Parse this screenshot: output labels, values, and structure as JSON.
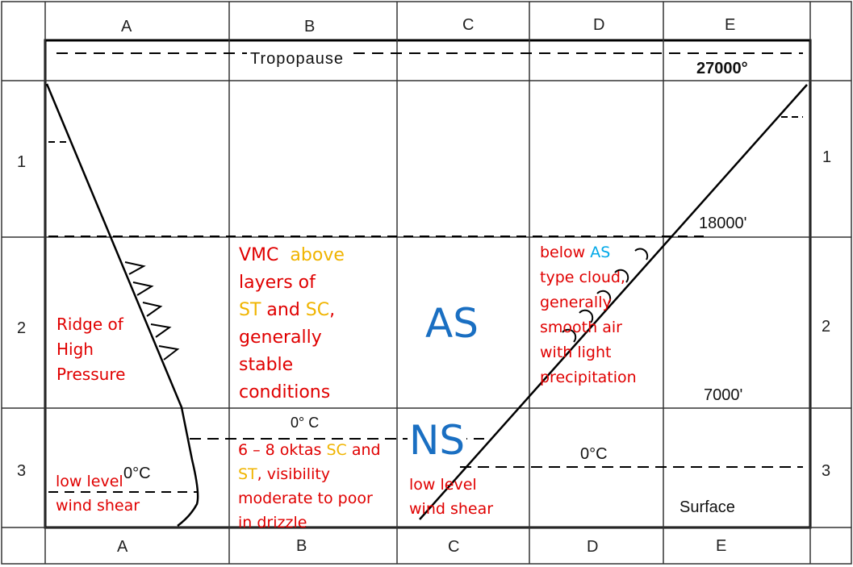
{
  "columns": [
    "A",
    "B",
    "C",
    "D",
    "E"
  ],
  "rows": [
    "1",
    "2",
    "3"
  ],
  "altitudes": {
    "tropopause": "Tropopause",
    "top": "27000°",
    "mid": "18000'",
    "low": "7000'",
    "surface": "Surface"
  },
  "freezing_levels": {
    "col_a": "0°C",
    "col_b": "0° C",
    "col_d": "0°C"
  },
  "clouds": {
    "as": "AS",
    "ns": "NS"
  },
  "notes": {
    "ridge": [
      "Ridge of",
      "High",
      "Pressure"
    ],
    "llws_a": [
      "low level",
      "wind shear"
    ],
    "vmc": {
      "w1": "VMC",
      "w2": "above",
      "l2": "layers of",
      "st": "ST",
      "and": " and ",
      "sc": "SC",
      "comma": ",",
      "l4": "generally",
      "l5": "stable",
      "l6": "conditions"
    },
    "oktas": {
      "pre": "6 – 8 oktas ",
      "sc": "SC",
      "post": " and",
      "st": "ST",
      "l2rest": ", visibility",
      "l3": "moderate to poor",
      "l4": "in drizzle"
    },
    "llws_c": [
      "low level",
      "wind shear"
    ],
    "below_as": {
      "pre": "below ",
      "as": "AS",
      "l2": "type cloud,",
      "l3": "generally",
      "l4": "smooth air",
      "l5": "with light",
      "l6": "precipitation"
    }
  },
  "colors": {
    "note_red": "#e00000",
    "highlight_yellow": "#f0b400",
    "highlight_cyan": "#00a8e8",
    "cloud_blue": "#1a6fc2"
  }
}
